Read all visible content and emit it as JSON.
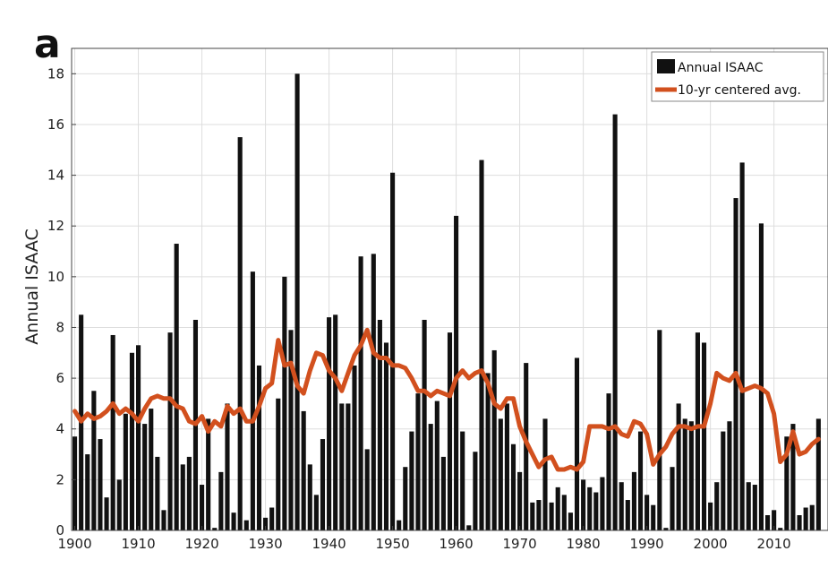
{
  "panel_label": "a",
  "chart_data": {
    "type": "bar",
    "ylabel": "Annual ISAAC",
    "xlim": [
      1900,
      2018
    ],
    "ylim": [
      0,
      19
    ],
    "x_ticks": [
      1900,
      1910,
      1920,
      1930,
      1940,
      1950,
      1960,
      1970,
      1980,
      1990,
      2000,
      2010
    ],
    "y_ticks": [
      0,
      2,
      4,
      6,
      8,
      10,
      12,
      14,
      16,
      18
    ],
    "grid": true,
    "legend_position": "top-right",
    "colors": {
      "bars": "#111111",
      "line": "#d2501e",
      "grid": "#dddddd"
    },
    "series": [
      {
        "name": "Annual ISAAC",
        "kind": "bar",
        "x": [
          1900,
          1901,
          1902,
          1903,
          1904,
          1905,
          1906,
          1907,
          1908,
          1909,
          1910,
          1911,
          1912,
          1913,
          1914,
          1915,
          1916,
          1917,
          1918,
          1919,
          1920,
          1921,
          1922,
          1923,
          1924,
          1925,
          1926,
          1927,
          1928,
          1929,
          1930,
          1931,
          1932,
          1933,
          1934,
          1935,
          1936,
          1937,
          1938,
          1939,
          1940,
          1941,
          1942,
          1943,
          1944,
          1945,
          1946,
          1947,
          1948,
          1949,
          1950,
          1951,
          1952,
          1953,
          1954,
          1955,
          1956,
          1957,
          1958,
          1959,
          1960,
          1961,
          1962,
          1963,
          1964,
          1965,
          1966,
          1967,
          1968,
          1969,
          1970,
          1971,
          1972,
          1973,
          1974,
          1975,
          1976,
          1977,
          1978,
          1979,
          1980,
          1981,
          1982,
          1983,
          1984,
          1985,
          1986,
          1987,
          1988,
          1989,
          1990,
          1991,
          1992,
          1993,
          1994,
          1995,
          1996,
          1997,
          1998,
          1999,
          2000,
          2001,
          2002,
          2003,
          2004,
          2005,
          2006,
          2007,
          2008,
          2009,
          2010,
          2011,
          2012,
          2013,
          2014,
          2015,
          2016,
          2017
        ],
        "values": [
          3.7,
          8.5,
          3.0,
          5.5,
          3.6,
          1.3,
          7.7,
          2.0,
          4.6,
          7.0,
          7.3,
          4.2,
          4.8,
          2.9,
          0.8,
          7.8,
          11.3,
          2.6,
          2.9,
          8.3,
          1.8,
          4.4,
          0.1,
          2.3,
          5.0,
          0.7,
          15.5,
          0.4,
          10.2,
          6.5,
          0.5,
          0.9,
          5.2,
          10.0,
          7.9,
          18.0,
          4.7,
          2.6,
          1.4,
          3.6,
          8.4,
          8.5,
          5.0,
          5.0,
          6.5,
          10.8,
          3.2,
          10.9,
          8.3,
          7.4,
          14.1,
          0.4,
          2.5,
          3.9,
          5.4,
          8.3,
          4.2,
          5.1,
          2.9,
          7.8,
          12.4,
          3.9,
          0.2,
          3.1,
          14.6,
          6.2,
          7.1,
          4.4,
          5.0,
          3.4,
          2.3,
          6.6,
          1.1,
          1.2,
          4.4,
          1.1,
          1.7,
          1.4,
          0.7,
          6.8,
          2.0,
          1.7,
          1.5,
          2.1,
          5.4,
          16.4,
          1.9,
          1.2,
          2.3,
          3.9,
          1.4,
          1.0,
          7.9,
          0.1,
          2.5,
          5.0,
          4.4,
          4.3,
          7.8,
          7.4,
          1.1,
          1.9,
          3.9,
          4.3,
          13.1,
          14.5,
          1.9,
          1.8,
          12.1,
          0.6,
          0.8,
          0.1,
          3.7,
          4.2,
          0.6,
          0.9,
          1.0,
          4.4
        ]
      },
      {
        "name": "10-yr centered avg.",
        "kind": "line",
        "x": [
          1900,
          1901,
          1902,
          1903,
          1904,
          1905,
          1906,
          1907,
          1908,
          1909,
          1910,
          1911,
          1912,
          1913,
          1914,
          1915,
          1916,
          1917,
          1918,
          1919,
          1920,
          1921,
          1922,
          1923,
          1924,
          1925,
          1926,
          1927,
          1928,
          1929,
          1930,
          1931,
          1932,
          1933,
          1934,
          1935,
          1936,
          1937,
          1938,
          1939,
          1940,
          1941,
          1942,
          1943,
          1944,
          1945,
          1946,
          1947,
          1948,
          1949,
          1950,
          1951,
          1952,
          1953,
          1954,
          1955,
          1956,
          1957,
          1958,
          1959,
          1960,
          1961,
          1962,
          1963,
          1964,
          1965,
          1966,
          1967,
          1968,
          1969,
          1970,
          1971,
          1972,
          1973,
          1974,
          1975,
          1976,
          1977,
          1978,
          1979,
          1980,
          1981,
          1982,
          1983,
          1984,
          1985,
          1986,
          1987,
          1988,
          1989,
          1990,
          1991,
          1992,
          1993,
          1994,
          1995,
          1996,
          1997,
          1998,
          1999,
          2000,
          2001,
          2002,
          2003,
          2004,
          2005,
          2006,
          2007,
          2008,
          2009,
          2010,
          2011,
          2012,
          2013,
          2014,
          2015,
          2016,
          2017
        ],
        "values": [
          4.7,
          4.3,
          4.6,
          4.4,
          4.5,
          4.7,
          5.0,
          4.6,
          4.8,
          4.6,
          4.3,
          4.8,
          5.2,
          5.3,
          5.2,
          5.2,
          4.9,
          4.8,
          4.3,
          4.2,
          4.5,
          3.9,
          4.3,
          4.1,
          4.9,
          4.6,
          4.8,
          4.3,
          4.3,
          4.9,
          5.6,
          5.8,
          7.5,
          6.5,
          6.6,
          5.7,
          5.4,
          6.3,
          7.0,
          6.9,
          6.3,
          6.0,
          5.5,
          6.2,
          6.9,
          7.3,
          7.9,
          7.0,
          6.8,
          6.8,
          6.5,
          6.5,
          6.4,
          6.0,
          5.5,
          5.5,
          5.3,
          5.5,
          5.4,
          5.3,
          6.0,
          6.3,
          6.0,
          6.2,
          6.3,
          5.8,
          5.0,
          4.8,
          5.2,
          5.2,
          4.1,
          3.5,
          3.0,
          2.5,
          2.8,
          2.9,
          2.4,
          2.4,
          2.5,
          2.4,
          2.7,
          4.1,
          4.1,
          4.1,
          4.0,
          4.1,
          3.8,
          3.7,
          4.3,
          4.2,
          3.8,
          2.6,
          3.0,
          3.3,
          3.8,
          4.1,
          4.1,
          4.0,
          4.1,
          4.1,
          5.0,
          6.2,
          6.0,
          5.9,
          6.2,
          5.5,
          5.6,
          5.7,
          5.6,
          5.4,
          4.6,
          2.7,
          3.0,
          3.9,
          3.0,
          3.1,
          3.4,
          3.6
        ]
      }
    ]
  }
}
